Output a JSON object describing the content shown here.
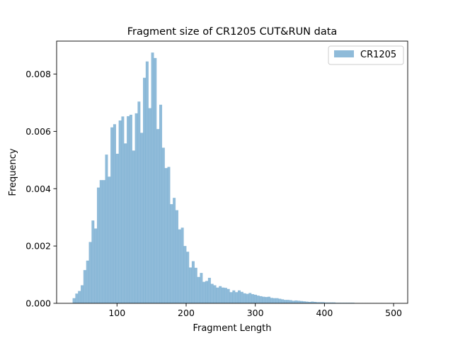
{
  "chart_data": {
    "type": "bar",
    "title": "Fragment size of CR1205 CUT&RUN data",
    "xlabel": "Fragment Length",
    "ylabel": "Frequency",
    "xlim": [
      12.7,
      520.4
    ],
    "ylim": [
      0,
      0.00915
    ],
    "xticks": [
      100,
      200,
      300,
      400,
      500
    ],
    "xtick_labels": [
      "100",
      "200",
      "300",
      "400",
      "500"
    ],
    "yticks": [
      0,
      0.002,
      0.004,
      0.006,
      0.008
    ],
    "ytick_labels": [
      "0.000",
      "0.002",
      "0.004",
      "0.006",
      "0.008"
    ],
    "grid": false,
    "legend_position": "top-right",
    "series": [
      {
        "name": "CR1205",
        "color": "#1f77b4",
        "opacity": 0.5,
        "bin_edges": [
          35.8,
          39.7,
          43.6,
          47.5,
          51.4,
          55.4,
          59.3,
          63.2,
          67.1,
          71.0,
          74.9,
          78.9,
          82.8,
          86.7,
          90.6,
          94.5,
          98.5,
          102.4,
          106.3,
          110.2,
          114.1,
          118.0,
          122.0,
          125.9,
          129.8,
          133.7,
          137.6,
          141.5,
          145.5,
          149.4,
          153.3,
          157.2,
          161.1,
          165.1,
          169.0,
          172.9,
          176.8,
          180.7,
          184.6,
          188.6,
          192.5,
          196.4,
          200.3,
          204.2,
          208.1,
          212.1,
          216.0,
          219.9,
          223.8,
          227.7,
          231.6,
          235.6,
          239.5,
          243.4,
          247.3,
          251.2,
          255.2,
          259.1,
          263.0,
          266.9,
          270.8,
          274.7,
          278.7,
          282.6,
          286.5,
          290.4,
          294.3,
          298.2,
          302.2,
          306.1,
          310.0,
          313.9,
          317.8,
          321.7,
          325.7,
          329.6,
          333.5,
          337.4,
          341.3,
          345.3,
          349.2,
          353.1,
          357.0,
          360.9,
          364.8,
          368.8,
          372.7,
          376.6,
          380.5,
          384.4,
          388.3,
          392.3,
          396.2,
          400.1,
          404.0,
          407.9,
          411.8,
          415.8,
          419.7,
          423.6,
          427.5,
          431.4,
          435.4,
          439.3,
          443.2,
          447.1,
          451.0,
          454.9,
          458.9,
          462.8,
          466.7,
          470.6,
          474.5,
          478.4,
          482.4,
          486.3,
          490.2,
          494.1,
          498.0
        ],
        "values": [
          0.00018,
          0.00034,
          0.00043,
          0.00063,
          0.00116,
          0.00149,
          0.00214,
          0.00289,
          0.00261,
          0.00404,
          0.0043,
          0.0043,
          0.00519,
          0.00442,
          0.00614,
          0.00625,
          0.00522,
          0.00638,
          0.00652,
          0.00558,
          0.00653,
          0.00658,
          0.00533,
          0.00663,
          0.00704,
          0.00595,
          0.00787,
          0.00844,
          0.00681,
          0.00875,
          0.00856,
          0.00608,
          0.00693,
          0.00543,
          0.00472,
          0.00476,
          0.00346,
          0.00368,
          0.00325,
          0.00258,
          0.00264,
          0.002,
          0.0018,
          0.00125,
          0.00147,
          0.00124,
          0.00092,
          0.00106,
          0.00075,
          0.00078,
          0.00089,
          0.00068,
          0.00063,
          0.00055,
          0.0006,
          0.00055,
          0.00054,
          0.0005,
          0.00039,
          0.00045,
          0.00039,
          0.00045,
          0.0004,
          0.00035,
          0.00033,
          0.00036,
          0.00032,
          0.0003,
          0.00027,
          0.00025,
          0.00023,
          0.00022,
          0.00023,
          0.00019,
          0.00018,
          0.00018,
          0.00016,
          0.00014,
          0.00012,
          0.00012,
          0.00011,
          9e-05,
          0.0001,
          9e-05,
          8e-05,
          7e-05,
          6e-05,
          5e-05,
          6e-05,
          5e-05,
          4e-05,
          4e-05,
          4e-05,
          3e-05,
          3e-05,
          3e-05,
          3e-05,
          2e-05,
          2e-05,
          2e-05,
          2e-05,
          2e-05,
          2e-05,
          2e-05,
          1e-05,
          1e-05,
          1e-05,
          1e-05,
          1e-05,
          1e-05,
          1e-05,
          1e-05,
          1e-05,
          1e-05,
          1e-05,
          0.0,
          1e-05,
          1e-05
        ]
      }
    ]
  }
}
